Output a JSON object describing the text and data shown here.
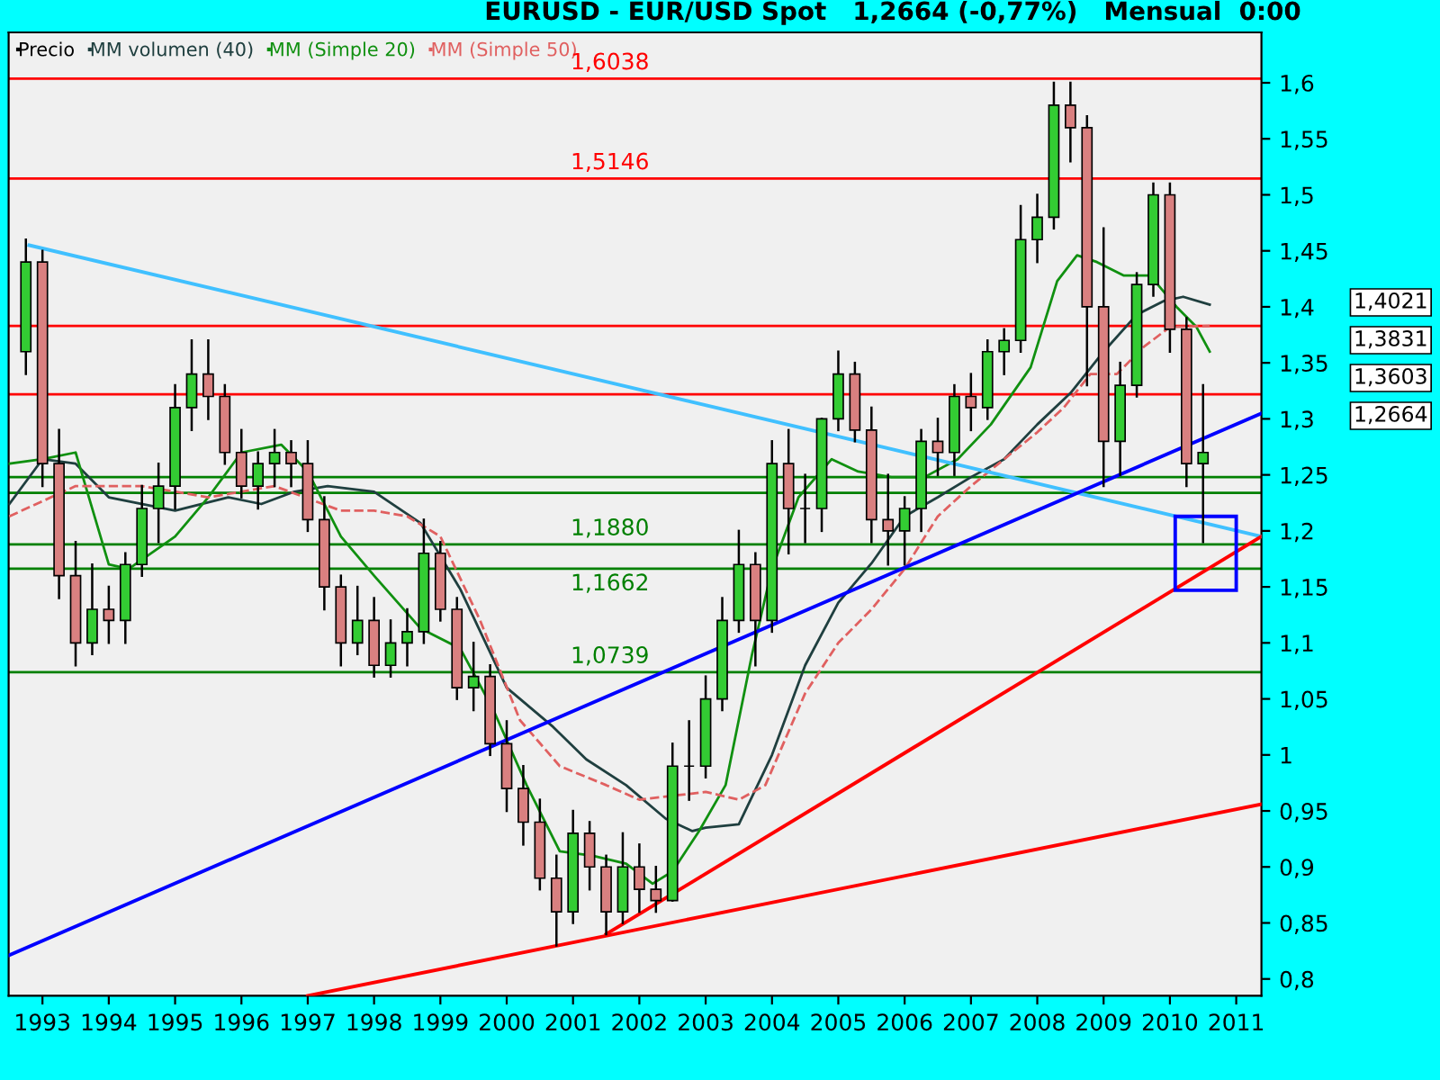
{
  "chart_data": {
    "type": "candlestick",
    "title": "EURUSD - EUR/USD Spot   1,2664 (-0,77%)   Mensual  0:00",
    "xlim": [
      1992.49,
      2011.38
    ],
    "ylim": [
      0.785,
      1.645
    ],
    "xticks": [
      1993,
      1994,
      1995,
      1996,
      1997,
      1998,
      1999,
      2000,
      2001,
      2002,
      2003,
      2004,
      2005,
      2006,
      2007,
      2008,
      2009,
      2010,
      2011
    ],
    "yticks": [
      {
        "value": 0.8,
        "label": "0,8"
      },
      {
        "value": 0.85,
        "label": "0,85"
      },
      {
        "value": 0.9,
        "label": "0,9"
      },
      {
        "value": 0.95,
        "label": "0,95"
      },
      {
        "value": 1,
        "label": "1"
      },
      {
        "value": 1.05,
        "label": "1,05"
      },
      {
        "value": 1.1,
        "label": "1,1"
      },
      {
        "value": 1.15,
        "label": "1,15"
      },
      {
        "value": 1.2,
        "label": "1,2"
      },
      {
        "value": 1.25,
        "label": "1,25"
      },
      {
        "value": 1.3,
        "label": "1,3"
      },
      {
        "value": 1.35,
        "label": "1,35"
      },
      {
        "value": 1.4,
        "label": "1,4"
      },
      {
        "value": 1.45,
        "label": "1,45"
      },
      {
        "value": 1.5,
        "label": "1,5"
      },
      {
        "value": 1.55,
        "label": "1,55"
      },
      {
        "value": 1.6,
        "label": "1,6"
      }
    ],
    "grid": false,
    "legend": "top left",
    "series": [
      {
        "name": "Precio",
        "color": "#000000",
        "x": [
          1992.75,
          1993.0,
          1993.25,
          1993.5,
          1993.75,
          1994.0,
          1994.25,
          1994.5,
          1994.75,
          1995.0,
          1995.25,
          1995.5,
          1995.75,
          1996.0,
          1996.25,
          1996.5,
          1996.75,
          1997.0,
          1997.25,
          1997.5,
          1997.75,
          1998.0,
          1998.25,
          1998.5,
          1998.75,
          1999.0,
          1999.25,
          1999.5,
          1999.75,
          2000.0,
          2000.25,
          2000.5,
          2000.75,
          2001.0,
          2001.25,
          2001.5,
          2001.75,
          2002.0,
          2002.25,
          2002.5,
          2002.75,
          2003.0,
          2003.25,
          2003.5,
          2003.75,
          2004.0,
          2004.25,
          2004.5,
          2004.75,
          2005.0,
          2005.25,
          2005.5,
          2005.75,
          2006.0,
          2006.25,
          2006.5,
          2006.75,
          2007.0,
          2007.25,
          2007.5,
          2007.75,
          2008.0,
          2008.25,
          2008.5,
          2008.75,
          2009.0,
          2009.25,
          2009.5,
          2009.75,
          2010.0,
          2010.25,
          2010.5
        ],
        "ohlc": [
          [
            1.36,
            1.46,
            1.34,
            1.44
          ],
          [
            1.44,
            1.45,
            1.24,
            1.26
          ],
          [
            1.26,
            1.29,
            1.14,
            1.16
          ],
          [
            1.16,
            1.19,
            1.08,
            1.1
          ],
          [
            1.1,
            1.17,
            1.09,
            1.13
          ],
          [
            1.13,
            1.15,
            1.1,
            1.12
          ],
          [
            1.12,
            1.18,
            1.1,
            1.17
          ],
          [
            1.17,
            1.24,
            1.16,
            1.22
          ],
          [
            1.22,
            1.26,
            1.19,
            1.24
          ],
          [
            1.24,
            1.33,
            1.22,
            1.31
          ],
          [
            1.31,
            1.37,
            1.29,
            1.34
          ],
          [
            1.34,
            1.37,
            1.3,
            1.32
          ],
          [
            1.32,
            1.33,
            1.26,
            1.27
          ],
          [
            1.27,
            1.29,
            1.23,
            1.24
          ],
          [
            1.24,
            1.27,
            1.22,
            1.26
          ],
          [
            1.26,
            1.29,
            1.24,
            1.27
          ],
          [
            1.27,
            1.28,
            1.24,
            1.26
          ],
          [
            1.26,
            1.28,
            1.2,
            1.21
          ],
          [
            1.21,
            1.23,
            1.13,
            1.15
          ],
          [
            1.15,
            1.16,
            1.08,
            1.1
          ],
          [
            1.1,
            1.15,
            1.09,
            1.12
          ],
          [
            1.12,
            1.14,
            1.07,
            1.08
          ],
          [
            1.08,
            1.12,
            1.07,
            1.1
          ],
          [
            1.1,
            1.13,
            1.08,
            1.11
          ],
          [
            1.11,
            1.21,
            1.1,
            1.18
          ],
          [
            1.18,
            1.19,
            1.12,
            1.13
          ],
          [
            1.13,
            1.14,
            1.05,
            1.06
          ],
          [
            1.06,
            1.1,
            1.04,
            1.07
          ],
          [
            1.07,
            1.08,
            1.0,
            1.01
          ],
          [
            1.01,
            1.03,
            0.95,
            0.97
          ],
          [
            0.97,
            0.99,
            0.92,
            0.94
          ],
          [
            0.94,
            0.96,
            0.88,
            0.89
          ],
          [
            0.89,
            0.91,
            0.83,
            0.86
          ],
          [
            0.86,
            0.95,
            0.85,
            0.93
          ],
          [
            0.93,
            0.94,
            0.88,
            0.9
          ],
          [
            0.9,
            0.91,
            0.84,
            0.86
          ],
          [
            0.86,
            0.93,
            0.85,
            0.9
          ],
          [
            0.9,
            0.92,
            0.86,
            0.88
          ],
          [
            0.88,
            0.9,
            0.86,
            0.87
          ],
          [
            0.87,
            1.01,
            0.87,
            0.99
          ],
          [
            0.99,
            1.03,
            0.96,
            0.99
          ],
          [
            0.99,
            1.07,
            0.98,
            1.05
          ],
          [
            1.05,
            1.14,
            1.04,
            1.12
          ],
          [
            1.12,
            1.2,
            1.11,
            1.17
          ],
          [
            1.17,
            1.18,
            1.08,
            1.12
          ],
          [
            1.12,
            1.28,
            1.11,
            1.26
          ],
          [
            1.26,
            1.29,
            1.18,
            1.22
          ],
          [
            1.22,
            1.25,
            1.19,
            1.22
          ],
          [
            1.22,
            1.3,
            1.2,
            1.3
          ],
          [
            1.3,
            1.36,
            1.29,
            1.34
          ],
          [
            1.34,
            1.35,
            1.28,
            1.29
          ],
          [
            1.29,
            1.31,
            1.19,
            1.21
          ],
          [
            1.21,
            1.25,
            1.17,
            1.2
          ],
          [
            1.2,
            1.23,
            1.17,
            1.22
          ],
          [
            1.22,
            1.29,
            1.2,
            1.28
          ],
          [
            1.28,
            1.3,
            1.25,
            1.27
          ],
          [
            1.27,
            1.33,
            1.25,
            1.32
          ],
          [
            1.32,
            1.34,
            1.29,
            1.31
          ],
          [
            1.31,
            1.37,
            1.3,
            1.36
          ],
          [
            1.36,
            1.38,
            1.34,
            1.37
          ],
          [
            1.37,
            1.49,
            1.36,
            1.46
          ],
          [
            1.46,
            1.5,
            1.44,
            1.48
          ],
          [
            1.48,
            1.6,
            1.47,
            1.58
          ],
          [
            1.58,
            1.6,
            1.53,
            1.56
          ],
          [
            1.56,
            1.57,
            1.33,
            1.4
          ],
          [
            1.4,
            1.47,
            1.24,
            1.28
          ],
          [
            1.28,
            1.35,
            1.25,
            1.33
          ],
          [
            1.33,
            1.43,
            1.32,
            1.42
          ],
          [
            1.42,
            1.51,
            1.41,
            1.5
          ],
          [
            1.5,
            1.51,
            1.36,
            1.38
          ],
          [
            1.38,
            1.39,
            1.24,
            1.26
          ],
          [
            1.26,
            1.33,
            1.19,
            1.27
          ]
        ]
      },
      {
        "name": "MM volumen (40)",
        "type": "line",
        "color": "#1f3f3f",
        "x": [
          1992.5,
          1993.0,
          1993.5,
          1994.0,
          1995.0,
          1995.8,
          1996.3,
          1996.8,
          1997.3,
          1998.0,
          1998.7,
          1999.3,
          2000.0,
          2000.7,
          2001.2,
          2001.8,
          2002.4,
          2002.8,
          2003.0,
          2003.5,
          2004.0,
          2004.5,
          2005.0,
          2005.5,
          2006.0,
          2006.5,
          2007.0,
          2007.5,
          2008.0,
          2008.5,
          2009.0,
          2009.5,
          2009.9,
          2010.2,
          2010.6
        ],
        "values": [
          1.224,
          1.264,
          1.26,
          1.23,
          1.218,
          1.23,
          1.224,
          1.235,
          1.24,
          1.235,
          1.207,
          1.148,
          1.06,
          1.025,
          0.996,
          0.973,
          0.943,
          0.932,
          0.935,
          0.938,
          1.0,
          1.08,
          1.136,
          1.171,
          1.213,
          1.23,
          1.248,
          1.264,
          1.295,
          1.323,
          1.36,
          1.393,
          1.405,
          1.409,
          1.402
        ]
      },
      {
        "name": "MM (Simple 20)",
        "type": "line",
        "color": "#109010",
        "x": [
          1992.5,
          1993.0,
          1993.5,
          1994.0,
          1994.3,
          1995.0,
          1995.5,
          1996.0,
          1996.6,
          1997.0,
          1997.5,
          1998.0,
          1998.7,
          1999.3,
          1999.8,
          2000.3,
          2000.8,
          2001.3,
          2001.8,
          2002.2,
          2002.5,
          2002.9,
          2003.3,
          2003.7,
          2004.0,
          2004.4,
          2004.9,
          2005.3,
          2005.8,
          2006.3,
          2006.8,
          2007.3,
          2007.9,
          2008.3,
          2008.6,
          2008.9,
          2009.3,
          2009.7,
          2010.1,
          2010.4,
          2010.6
        ],
        "values": [
          1.26,
          1.264,
          1.27,
          1.17,
          1.166,
          1.195,
          1.23,
          1.27,
          1.277,
          1.253,
          1.195,
          1.16,
          1.113,
          1.095,
          1.04,
          0.973,
          0.914,
          0.91,
          0.903,
          0.885,
          0.896,
          0.932,
          0.973,
          1.09,
          1.166,
          1.23,
          1.264,
          1.253,
          1.248,
          1.248,
          1.264,
          1.295,
          1.346,
          1.423,
          1.446,
          1.44,
          1.428,
          1.428,
          1.4,
          1.382,
          1.36
        ]
      },
      {
        "name": "MM (Simple 50)",
        "type": "line",
        "color": "#e06060",
        "line_style": "dashed",
        "x": [
          1992.5,
          1993.5,
          1994.5,
          1995.5,
          1996.5,
          1997.5,
          1998.0,
          1998.5,
          1999.0,
          1999.6,
          2000.2,
          2000.8,
          2001.5,
          2002.0,
          2003.0,
          2003.5,
          2003.9,
          2004.5,
          2005.0,
          2005.5,
          2006.0,
          2006.5,
          2007.0,
          2007.5,
          2008.0,
          2008.4,
          2008.8,
          2009.2,
          2009.6,
          2010.0,
          2010.6
        ],
        "values": [
          1.213,
          1.24,
          1.24,
          1.23,
          1.24,
          1.218,
          1.218,
          1.213,
          1.195,
          1.12,
          1.031,
          0.99,
          0.973,
          0.96,
          0.967,
          0.96,
          0.973,
          1.055,
          1.1,
          1.13,
          1.166,
          1.213,
          1.24,
          1.264,
          1.288,
          1.31,
          1.34,
          1.34,
          1.364,
          1.382,
          1.383
        ]
      },
      {
        "type": "line",
        "color": "#40c0ff",
        "x": [
          1992.8,
          2011.38
        ],
        "values": [
          1.455,
          1.195
        ]
      },
      {
        "type": "line",
        "color": "#0000ff",
        "x": [
          1992.49,
          2011.38
        ],
        "values": [
          0.821,
          1.305
        ]
      },
      {
        "type": "line",
        "color": "#ff0000",
        "x": [
          2001.5,
          2011.38
        ],
        "values": [
          0.84,
          1.195
        ]
      },
      {
        "type": "line",
        "color": "#ff0000",
        "x": [
          1997.0,
          2011.38
        ],
        "values": [
          0.785,
          0.956
        ]
      },
      {
        "type": "bar",
        "color": "#0000ff",
        "x": [
          2010.54
        ],
        "values": [
          0.066
        ],
        "base": [
          1.147
        ]
      }
    ],
    "ref_lines": [
      {
        "axis": "y",
        "value": 1.6038,
        "label": "1,6038",
        "color": "#ff0000"
      },
      {
        "axis": "y",
        "value": 1.5146,
        "label": "1,5146",
        "color": "#ff0000"
      },
      {
        "axis": "y",
        "value": 1.383,
        "color": "#ff0000"
      },
      {
        "axis": "y",
        "value": 1.322,
        "color": "#ff0000"
      },
      {
        "axis": "y",
        "value": 1.248,
        "color": "#008000"
      },
      {
        "axis": "y",
        "value": 1.234,
        "color": "#008000"
      },
      {
        "axis": "y",
        "value": 1.188,
        "label": "1,1880",
        "color": "#008000"
      },
      {
        "axis": "y",
        "value": 1.1662,
        "label": "1,1662",
        "color": "#008000"
      },
      {
        "axis": "y",
        "value": 1.0739,
        "label": "1,0739",
        "color": "#008000"
      }
    ],
    "annotations": [
      "1,4021",
      "1,3831",
      "1,3603",
      "1,2664"
    ]
  }
}
